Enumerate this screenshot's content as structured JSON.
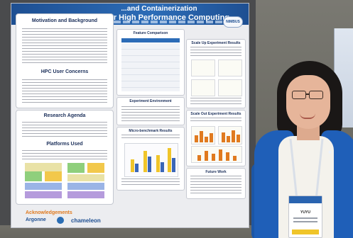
{
  "poster": {
    "banner": {
      "line1": "...and Containerization",
      "line2": "...es for High Performance Computing",
      "logo": "NIMBUS"
    },
    "sections": {
      "motivation": "Motivation and Background",
      "hpc_concerns": "HPC User Concerns",
      "research_agenda": "Research Agenda",
      "platforms": "Platforms Used",
      "feature_comparison": "Feature Comparison",
      "experiment_environment": "Experiment Environment",
      "micro_benchmark": "Micro-benchmark Results",
      "scale_up": "Scale Up Experiment Results",
      "scale_out": "Scale Out Experiment Results",
      "future_work": "Future Work"
    },
    "acknowledgements": "Acknowledgements",
    "logos": [
      "Argonne",
      "chameleon"
    ]
  },
  "badge": {
    "name": "YUYU"
  },
  "colors": {
    "banner_blue": "#2c6cb7",
    "jacket_blue": "#1f5fb8",
    "accent_orange": "#e07a1f",
    "bar_yellow": "#f0c52a"
  }
}
